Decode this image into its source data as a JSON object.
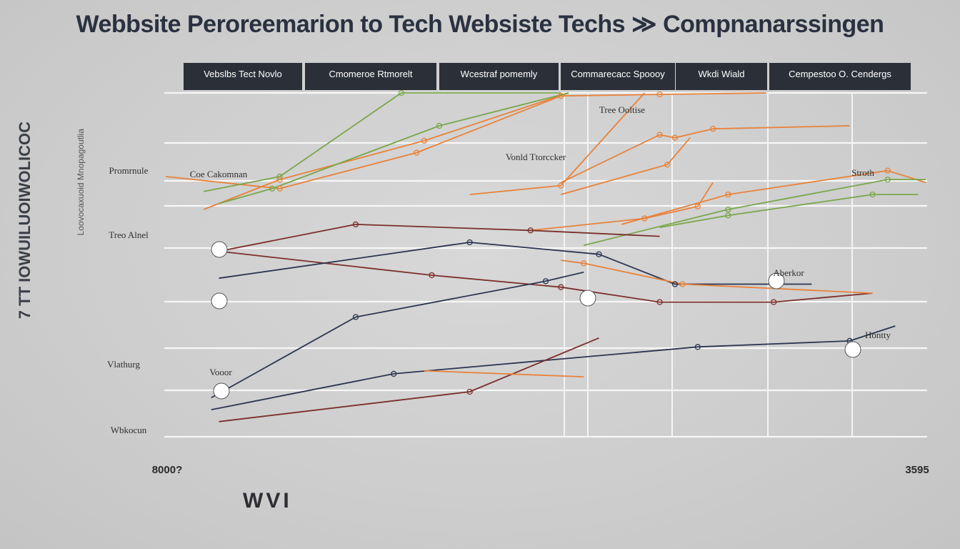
{
  "title": "Webbsite Peroreemarion to Tech  Websiste Techs ≫ Compnanarssingen",
  "y_axis_label": "7 TT  IOWUILUOIWOLICOC",
  "y_axis_sublabel": "Loovocaxuoid  Mnopagoutlia",
  "footer_text": "WVI",
  "legend": [
    "Vebslbs Tect Novlo",
    "Cmomeroe Rtmorelt",
    "Wcestraf pomemly",
    "Commarecacc Spoooy",
    "Wkdi Wiald",
    "Cempestoo O. Cendergs"
  ],
  "annotations": [
    "Promrnule",
    "Coe Cakomnan",
    "Treo Alnel",
    "Vlathurg",
    "Wbkocun",
    "Vooor",
    "Vonld Ttorccker",
    "Tree Ooltise",
    "Stroth",
    "Aberkor",
    "Hontty"
  ],
  "chart_data": {
    "type": "line",
    "title": "Webbsite Peroreemarion to Tech  Websiste Techs ≫ Compnanarssingen",
    "x_tick_labels": [
      "8000?",
      "3595"
    ],
    "xlim": [
      0,
      100
    ],
    "ylim": [
      0,
      100
    ],
    "grid": true,
    "legend_position": "top",
    "series": [
      {
        "color": "#e8823a",
        "x": [
          0,
          15,
          33,
          52,
          65,
          79
        ],
        "y": [
          72,
          68,
          80,
          99,
          99.5,
          100
        ]
      },
      {
        "color": "#7aa64b",
        "x": [
          5,
          15,
          31,
          52
        ],
        "y": [
          67,
          72,
          100,
          100
        ]
      },
      {
        "color": "#e8823a",
        "x": [
          5,
          15,
          34,
          53
        ],
        "y": [
          61,
          71,
          84,
          100
        ]
      },
      {
        "color": "#7aa64b",
        "x": [
          7,
          14,
          36,
          53
        ],
        "y": [
          63,
          68,
          89,
          100
        ]
      },
      {
        "color": "#e8823a",
        "x": [
          40,
          52,
          63
        ],
        "y": [
          66,
          69,
          100
        ]
      },
      {
        "color": "#e8823a",
        "x": [
          52,
          65,
          67,
          72,
          90
        ],
        "y": [
          70,
          86,
          85,
          88,
          89
        ]
      },
      {
        "color": "#e8823a",
        "x": [
          52,
          66,
          69
        ],
        "y": [
          66,
          76,
          85
        ]
      },
      {
        "color": "#e8823a",
        "x": [
          60,
          74,
          95,
          100
        ],
        "y": [
          56,
          66,
          74,
          70
        ]
      },
      {
        "color": "#7aa64b",
        "x": [
          55,
          74,
          95,
          100
        ],
        "y": [
          49,
          61,
          71,
          71
        ]
      },
      {
        "color": "#7aa64b",
        "x": [
          65,
          74,
          93,
          99
        ],
        "y": [
          55,
          59,
          66,
          66
        ]
      },
      {
        "color": "#e8823a",
        "x": [
          48,
          63,
          70,
          72
        ],
        "y": [
          54,
          58,
          62,
          70
        ]
      },
      {
        "color": "#7b2f2b",
        "x": [
          7,
          25,
          48,
          65
        ],
        "y": [
          47,
          56,
          54,
          52
        ]
      },
      {
        "color": "#7b2f2b",
        "x": [
          7,
          35,
          52,
          65,
          80,
          93
        ],
        "y": [
          47,
          39,
          35,
          30,
          30,
          33
        ]
      },
      {
        "color": "#2b3550",
        "x": [
          7,
          40,
          57,
          67,
          85
        ],
        "y": [
          38,
          50,
          46,
          36,
          36
        ]
      },
      {
        "color": "#e8823a",
        "x": [
          52,
          55,
          68,
          93
        ],
        "y": [
          44,
          43,
          36,
          33
        ]
      },
      {
        "color": "#2b3550",
        "x": [
          6,
          25,
          50,
          55
        ],
        "y": [
          -2,
          25,
          37,
          40
        ]
      },
      {
        "color": "#2b3550",
        "x": [
          6,
          30,
          70,
          90,
          96
        ],
        "y": [
          -6,
          6,
          15,
          17,
          22
        ]
      },
      {
        "color": "#7b2f2b",
        "x": [
          7,
          40,
          57
        ],
        "y": [
          -10,
          0,
          18
        ]
      },
      {
        "color": "#e8823a",
        "x": [
          34,
          55
        ],
        "y": [
          7,
          5
        ]
      }
    ]
  }
}
